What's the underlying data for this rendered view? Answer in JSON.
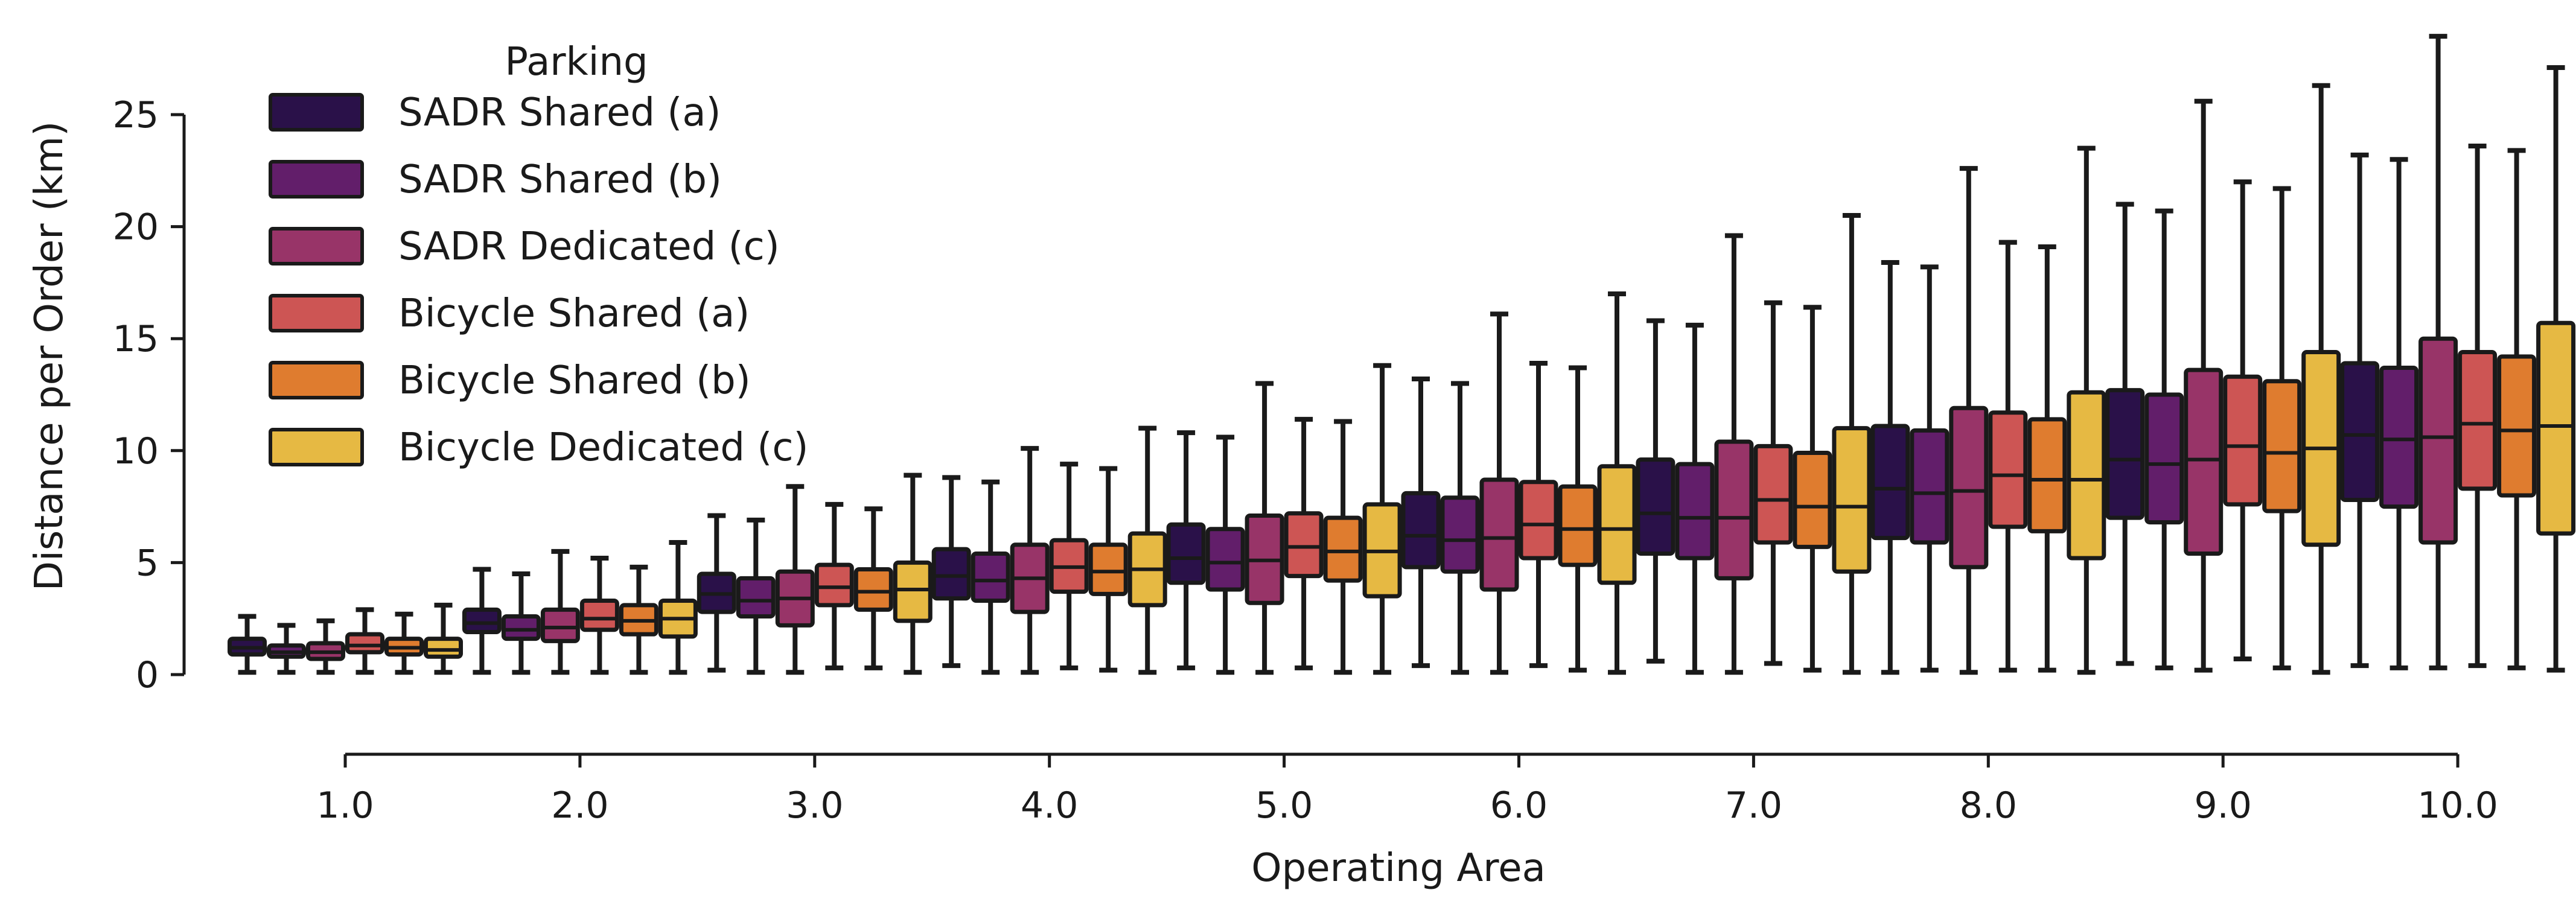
{
  "chart_data": {
    "type": "boxplot",
    "xlabel": "Operating Area",
    "ylabel": "Distance per Order (km)",
    "ylim": [
      -3.5,
      28.5
    ],
    "yticks": [
      0,
      5,
      10,
      15,
      20,
      25
    ],
    "ytick_labels": [
      "0",
      "5",
      "10",
      "15",
      "20",
      "25"
    ],
    "categories": [
      "1.0",
      "2.0",
      "3.0",
      "4.0",
      "5.0",
      "6.0",
      "7.0",
      "8.0",
      "9.0",
      "10.0"
    ],
    "legend": {
      "title": "Parking",
      "position": "top-left"
    },
    "series": [
      {
        "name": "SADR Shared (a)",
        "color": "#2a1149",
        "boxes": [
          {
            "whislo": 0.1,
            "q1": 0.9,
            "med": 1.2,
            "q3": 1.6,
            "whishi": 2.6
          },
          {
            "whislo": 0.1,
            "q1": 1.9,
            "med": 2.3,
            "q3": 2.9,
            "whishi": 4.7
          },
          {
            "whislo": 0.2,
            "q1": 2.8,
            "med": 3.6,
            "q3": 4.5,
            "whishi": 7.1
          },
          {
            "whislo": 0.4,
            "q1": 3.4,
            "med": 4.4,
            "q3": 5.6,
            "whishi": 8.8
          },
          {
            "whislo": 0.3,
            "q1": 4.1,
            "med": 5.2,
            "q3": 6.7,
            "whishi": 10.8
          },
          {
            "whislo": 0.4,
            "q1": 4.8,
            "med": 6.2,
            "q3": 8.1,
            "whishi": 13.2
          },
          {
            "whislo": 0.6,
            "q1": 5.4,
            "med": 7.2,
            "q3": 9.6,
            "whishi": 15.8
          },
          {
            "whislo": 0.1,
            "q1": 6.1,
            "med": 8.3,
            "q3": 11.1,
            "whishi": 18.4
          },
          {
            "whislo": 0.5,
            "q1": 7.0,
            "med": 9.6,
            "q3": 12.7,
            "whishi": 21.0
          },
          {
            "whislo": 0.4,
            "q1": 7.8,
            "med": 10.7,
            "q3": 13.9,
            "whishi": 23.2
          }
        ]
      },
      {
        "name": "SADR Shared (b)",
        "color": "#621e6a",
        "boxes": [
          {
            "whislo": 0.1,
            "q1": 0.8,
            "med": 1.0,
            "q3": 1.3,
            "whishi": 2.2
          },
          {
            "whislo": 0.1,
            "q1": 1.6,
            "med": 2.0,
            "q3": 2.6,
            "whishi": 4.5
          },
          {
            "whislo": 0.1,
            "q1": 2.6,
            "med": 3.3,
            "q3": 4.3,
            "whishi": 6.9
          },
          {
            "whislo": 0.1,
            "q1": 3.3,
            "med": 4.2,
            "q3": 5.4,
            "whishi": 8.6
          },
          {
            "whislo": 0.1,
            "q1": 3.8,
            "med": 5.0,
            "q3": 6.5,
            "whishi": 10.6
          },
          {
            "whislo": 0.1,
            "q1": 4.6,
            "med": 6.0,
            "q3": 7.9,
            "whishi": 13.0
          },
          {
            "whislo": 0.1,
            "q1": 5.2,
            "med": 7.0,
            "q3": 9.4,
            "whishi": 15.6
          },
          {
            "whislo": 0.2,
            "q1": 5.9,
            "med": 8.1,
            "q3": 10.9,
            "whishi": 18.2
          },
          {
            "whislo": 0.3,
            "q1": 6.8,
            "med": 9.4,
            "q3": 12.5,
            "whishi": 20.7
          },
          {
            "whislo": 0.3,
            "q1": 7.5,
            "med": 10.5,
            "q3": 13.7,
            "whishi": 23.0
          }
        ]
      },
      {
        "name": "SADR Dedicated (c)",
        "color": "#983468",
        "boxes": [
          {
            "whislo": 0.1,
            "q1": 0.7,
            "med": 1.0,
            "q3": 1.4,
            "whishi": 2.4
          },
          {
            "whislo": 0.1,
            "q1": 1.5,
            "med": 2.1,
            "q3": 2.9,
            "whishi": 5.5
          },
          {
            "whislo": 0.1,
            "q1": 2.2,
            "med": 3.4,
            "q3": 4.6,
            "whishi": 8.4
          },
          {
            "whislo": 0.1,
            "q1": 2.8,
            "med": 4.3,
            "q3": 5.8,
            "whishi": 10.1
          },
          {
            "whislo": 0.1,
            "q1": 3.2,
            "med": 5.1,
            "q3": 7.1,
            "whishi": 13.0
          },
          {
            "whislo": 0.1,
            "q1": 3.8,
            "med": 6.1,
            "q3": 8.7,
            "whishi": 16.1
          },
          {
            "whislo": 0.1,
            "q1": 4.3,
            "med": 7.0,
            "q3": 10.4,
            "whishi": 19.6
          },
          {
            "whislo": 0.1,
            "q1": 4.8,
            "med": 8.2,
            "q3": 11.9,
            "whishi": 22.6
          },
          {
            "whislo": 0.2,
            "q1": 5.4,
            "med": 9.6,
            "q3": 13.6,
            "whishi": 25.6
          },
          {
            "whislo": 0.3,
            "q1": 5.9,
            "med": 10.6,
            "q3": 15.0,
            "whishi": 28.5
          }
        ]
      },
      {
        "name": "Bicycle Shared (a)",
        "color": "#cd5554",
        "boxes": [
          {
            "whislo": 0.1,
            "q1": 1.0,
            "med": 1.3,
            "q3": 1.8,
            "whishi": 2.9
          },
          {
            "whislo": 0.1,
            "q1": 2.0,
            "med": 2.5,
            "q3": 3.3,
            "whishi": 5.2
          },
          {
            "whislo": 0.3,
            "q1": 3.1,
            "med": 3.9,
            "q3": 4.9,
            "whishi": 7.6
          },
          {
            "whislo": 0.3,
            "q1": 3.7,
            "med": 4.8,
            "q3": 6.0,
            "whishi": 9.4
          },
          {
            "whislo": 0.3,
            "q1": 4.4,
            "med": 5.7,
            "q3": 7.2,
            "whishi": 11.4
          },
          {
            "whislo": 0.4,
            "q1": 5.2,
            "med": 6.7,
            "q3": 8.6,
            "whishi": 13.9
          },
          {
            "whislo": 0.5,
            "q1": 5.9,
            "med": 7.8,
            "q3": 10.2,
            "whishi": 16.6
          },
          {
            "whislo": 0.2,
            "q1": 6.6,
            "med": 8.9,
            "q3": 11.7,
            "whishi": 19.3
          },
          {
            "whislo": 0.7,
            "q1": 7.6,
            "med": 10.2,
            "q3": 13.3,
            "whishi": 22.0
          },
          {
            "whislo": 0.4,
            "q1": 8.3,
            "med": 11.2,
            "q3": 14.4,
            "whishi": 23.6
          }
        ]
      },
      {
        "name": "Bicycle Shared (b)",
        "color": "#df7c2f",
        "boxes": [
          {
            "whislo": 0.1,
            "q1": 0.9,
            "med": 1.2,
            "q3": 1.6,
            "whishi": 2.7
          },
          {
            "whislo": 0.1,
            "q1": 1.8,
            "med": 2.4,
            "q3": 3.1,
            "whishi": 4.8
          },
          {
            "whislo": 0.3,
            "q1": 2.9,
            "med": 3.7,
            "q3": 4.7,
            "whishi": 7.4
          },
          {
            "whislo": 0.2,
            "q1": 3.6,
            "med": 4.6,
            "q3": 5.8,
            "whishi": 9.2
          },
          {
            "whislo": 0.1,
            "q1": 4.2,
            "med": 5.5,
            "q3": 7.0,
            "whishi": 11.3
          },
          {
            "whislo": 0.2,
            "q1": 4.9,
            "med": 6.5,
            "q3": 8.4,
            "whishi": 13.7
          },
          {
            "whislo": 0.2,
            "q1": 5.7,
            "med": 7.5,
            "q3": 9.9,
            "whishi": 16.4
          },
          {
            "whislo": 0.2,
            "q1": 6.4,
            "med": 8.7,
            "q3": 11.4,
            "whishi": 19.1
          },
          {
            "whislo": 0.3,
            "q1": 7.3,
            "med": 9.9,
            "q3": 13.1,
            "whishi": 21.7
          },
          {
            "whislo": 0.3,
            "q1": 8.0,
            "med": 10.9,
            "q3": 14.2,
            "whishi": 23.4
          }
        ]
      },
      {
        "name": "Bicycle Dedicated (c)",
        "color": "#e6b943",
        "boxes": [
          {
            "whislo": 0.1,
            "q1": 0.8,
            "med": 1.1,
            "q3": 1.6,
            "whishi": 3.1
          },
          {
            "whislo": 0.1,
            "q1": 1.7,
            "med": 2.5,
            "q3": 3.3,
            "whishi": 5.9
          },
          {
            "whislo": 0.1,
            "q1": 2.4,
            "med": 3.8,
            "q3": 5.0,
            "whishi": 8.9
          },
          {
            "whislo": 0.1,
            "q1": 3.1,
            "med": 4.7,
            "q3": 6.3,
            "whishi": 11.0
          },
          {
            "whislo": 0.1,
            "q1": 3.5,
            "med": 5.5,
            "q3": 7.6,
            "whishi": 13.8
          },
          {
            "whislo": 0.1,
            "q1": 4.1,
            "med": 6.5,
            "q3": 9.3,
            "whishi": 17.0
          },
          {
            "whislo": 0.1,
            "q1": 4.6,
            "med": 7.5,
            "q3": 11.0,
            "whishi": 20.5
          },
          {
            "whislo": 0.1,
            "q1": 5.2,
            "med": 8.7,
            "q3": 12.6,
            "whishi": 23.5
          },
          {
            "whislo": 0.1,
            "q1": 5.8,
            "med": 10.1,
            "q3": 14.4,
            "whishi": 26.3
          },
          {
            "whislo": 0.2,
            "q1": 6.3,
            "med": 11.1,
            "q3": 15.7,
            "whishi": 27.1
          }
        ]
      }
    ]
  }
}
